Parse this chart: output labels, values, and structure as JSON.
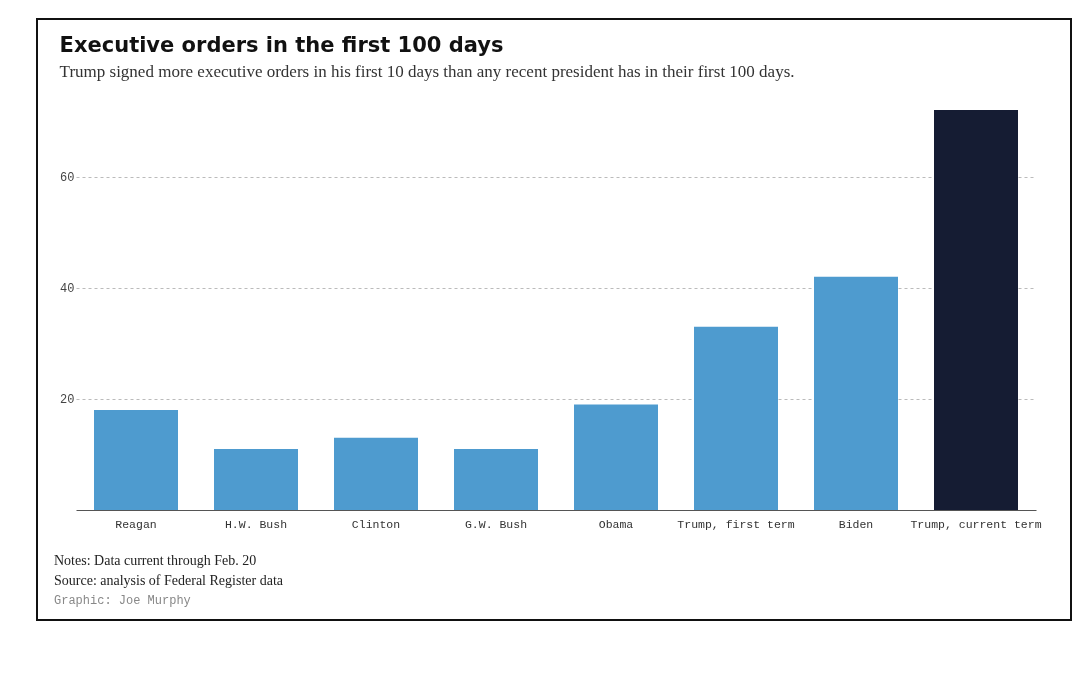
{
  "chart_data": {
    "type": "bar",
    "title": "Executive orders in the first 100 days",
    "subtitle": "Trump signed more executive orders in his first 10 days than any recent president has in their first 100 days.",
    "categories": [
      "Reagan",
      "H.W. Bush",
      "Clinton",
      "G.W. Bush",
      "Obama",
      "Trump, first term",
      "Biden",
      "Trump, current term"
    ],
    "values": [
      18,
      11,
      13,
      11,
      19,
      33,
      42,
      72
    ],
    "colors": [
      "#4e9bcf",
      "#4e9bcf",
      "#4e9bcf",
      "#4e9bcf",
      "#4e9bcf",
      "#4e9bcf",
      "#4e9bcf",
      "#151c33"
    ],
    "ylim": [
      0,
      72
    ],
    "yticks": [
      20,
      40,
      60
    ],
    "grid": "y",
    "annotations": [
      "Notes: Data current through Feb. 20",
      "Source: analysis of Federal Register data",
      "Graphic: Joe Murphy"
    ]
  }
}
